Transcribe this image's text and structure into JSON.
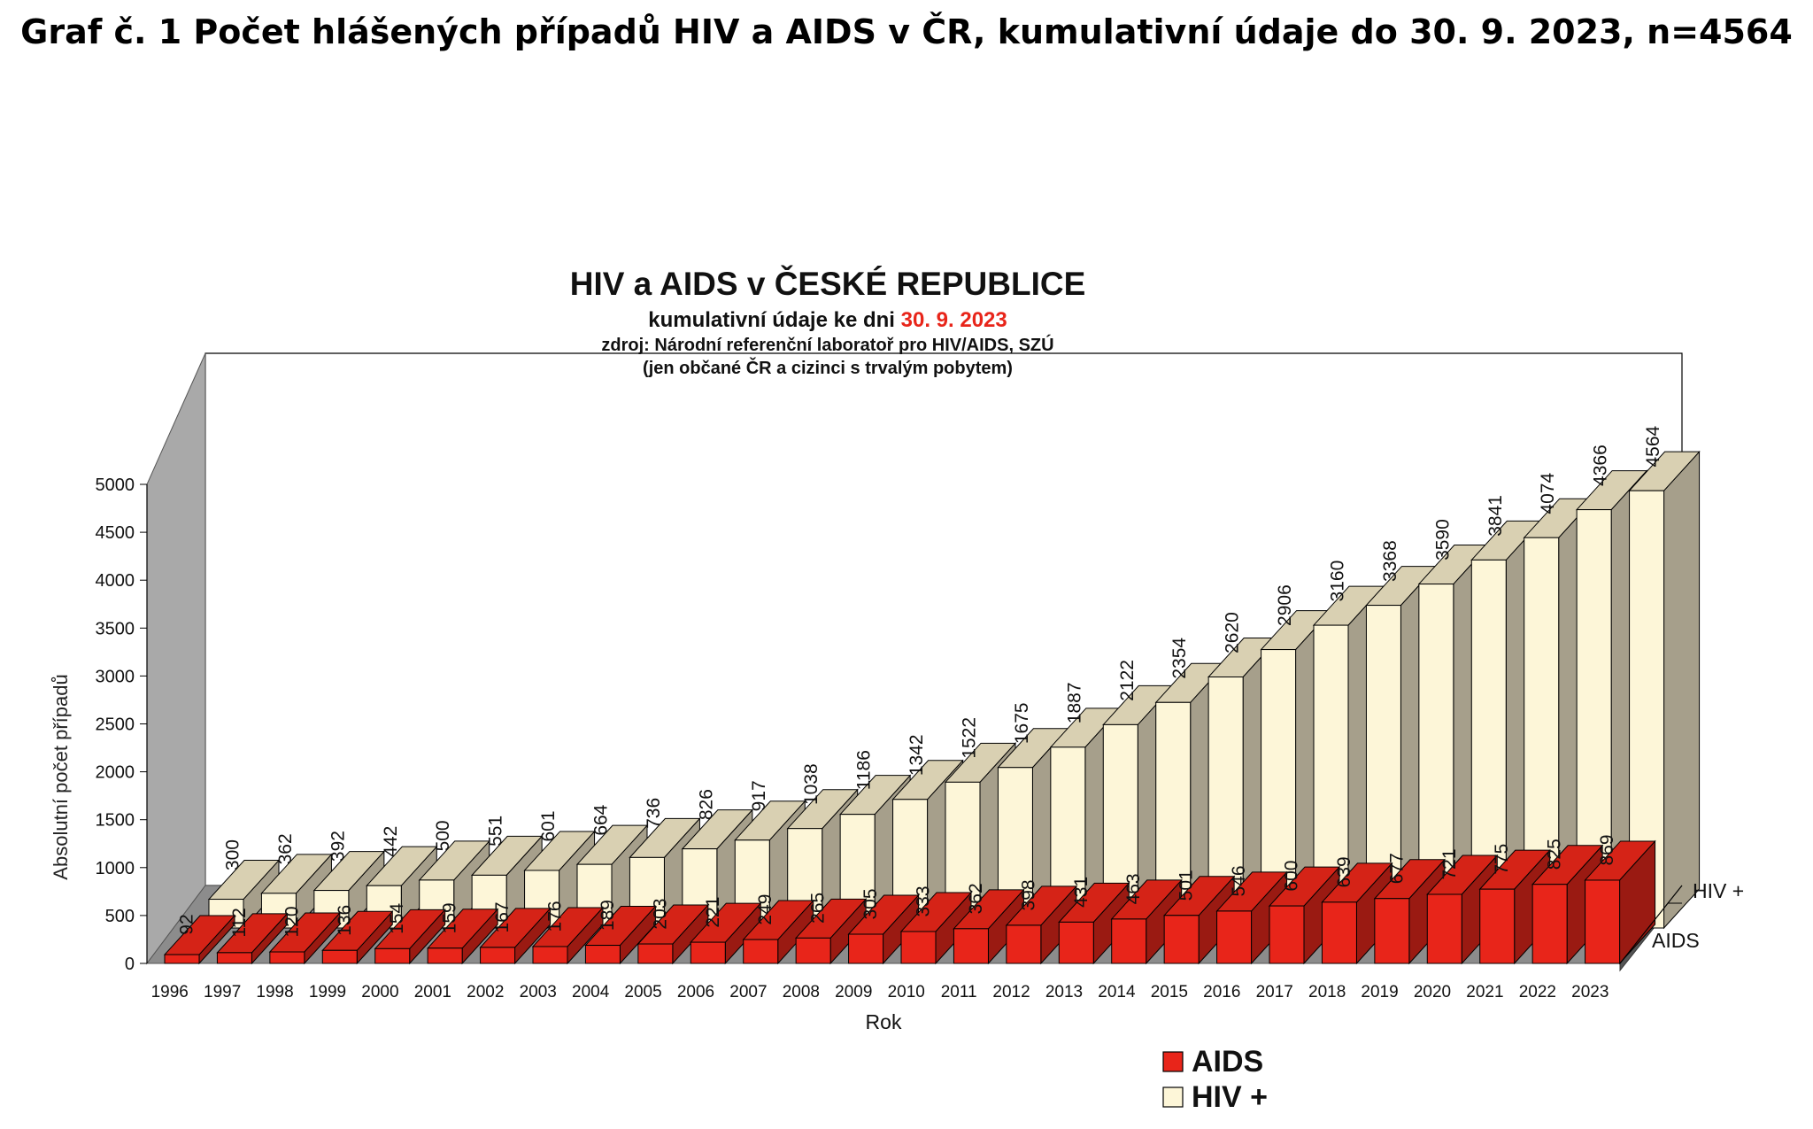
{
  "page_title": "Graf č. 1 Počet hlášených případů HIV a AIDS v ČR, kumulativní údaje do 30. 9. 2023, n=4564",
  "chart_data": {
    "type": "bar",
    "title": "HIV a AIDS v ČESKÉ REPUBLICE",
    "subtitle_prefix": "kumulativní údaje ke dni ",
    "subtitle_date": "30. 9. 2023",
    "source": "zdroj: Národní referenční laboratoř pro HIV/AIDS, SZÚ",
    "note": "(jen občané ČR a cizinci s trvalým pobytem)",
    "xlabel": "Rok",
    "ylabel": "Absolutní počet případů",
    "ylim": [
      0,
      5000
    ],
    "yticks": [
      0,
      500,
      1000,
      1500,
      2000,
      2500,
      3000,
      3500,
      4000,
      4500,
      5000
    ],
    "categories": [
      "1996",
      "1997",
      "1998",
      "1999",
      "2000",
      "2001",
      "2002",
      "2003",
      "2004",
      "2005",
      "2006",
      "2007",
      "2008",
      "2009",
      "2010",
      "2011",
      "2012",
      "2013",
      "2014",
      "2015",
      "2016",
      "2017",
      "2018",
      "2019",
      "2020",
      "2021",
      "2022",
      "2023"
    ],
    "series": [
      {
        "name": "AIDS",
        "color": "#e8251a",
        "values": [
          92,
          112,
          120,
          136,
          154,
          159,
          167,
          176,
          189,
          203,
          221,
          249,
          265,
          305,
          333,
          362,
          398,
          431,
          463,
          501,
          546,
          600,
          639,
          677,
          721,
          775,
          825,
          869
        ]
      },
      {
        "name": "HIV +",
        "color": "#fdf6d8",
        "values": [
          300,
          362,
          392,
          442,
          500,
          551,
          601,
          664,
          736,
          826,
          917,
          1038,
          1186,
          1342,
          1522,
          1675,
          1887,
          2122,
          2354,
          2620,
          2906,
          3160,
          3368,
          3590,
          3841,
          4074,
          4366,
          4564
        ]
      }
    ],
    "depth_labels": [
      "HIV +",
      "AIDS"
    ],
    "legend": [
      "AIDS",
      "HIV +"
    ],
    "legend_position": "bottom-center"
  }
}
